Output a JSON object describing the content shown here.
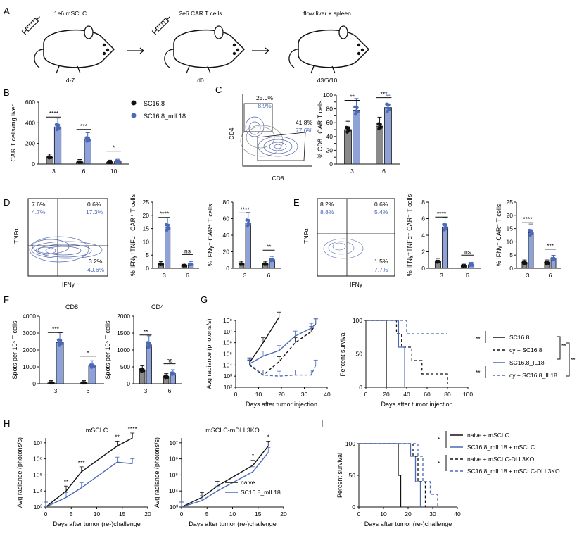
{
  "panels": {
    "A": "A",
    "B": "B",
    "C": "C",
    "D": "D",
    "E": "E",
    "F": "F",
    "G": "G",
    "H": "H",
    "I": "I"
  },
  "colors": {
    "black": "#111111",
    "blue": "#4a69b7",
    "lightblue": "#8ea2d8",
    "grey": "#8a8a8a"
  },
  "schematic": {
    "step1_label": "1e6 mSCLC",
    "step1_day": "d-7",
    "step2_label": "2e6 CAR T cells",
    "step2_day": "d0",
    "step3_label": "flow liver + spleen",
    "step3_day": "d3/6/10"
  },
  "legend_b": {
    "item1": "SC16.8",
    "item2": "SC16.8_mIL18"
  },
  "flow": {
    "c": {
      "tl_black": "25.0%",
      "tl_blue": "8.9%",
      "br_black": "41.8%",
      "br_blue": "77.6%",
      "xlabel": "CD8",
      "ylabel": "CD4"
    },
    "d": {
      "tl_black": "7.6%",
      "tl_blue": "4.7%",
      "tr_black": "0.6%",
      "tr_blue": "17.3%",
      "br_black": "3.2%",
      "br_blue": "40.6%",
      "xlabel": "IFNγ",
      "ylabel": "TNFα"
    },
    "e": {
      "tl_black": "8.2%",
      "tl_blue": "8.8%",
      "tr_black": "0.6%",
      "tr_blue": "5.4%",
      "br_black": "1.5%",
      "br_blue": "7.7%",
      "xlabel": "IFNγ",
      "ylabel": "TNFα"
    }
  },
  "chart_data": [
    {
      "id": "B",
      "type": "bar",
      "categories": [
        "3",
        "6",
        "10"
      ],
      "series": [
        {
          "name": "SC16.8",
          "values": [
            65,
            20,
            15
          ]
        },
        {
          "name": "SC16.8_mIL18",
          "values": [
            360,
            240,
            30
          ]
        }
      ],
      "ylabel": "CAR T cells/mg liver",
      "ylim": [
        0,
        600
      ],
      "yticks": [
        "0",
        "200",
        "400",
        "600"
      ],
      "sig": [
        "****",
        "***",
        "*"
      ]
    },
    {
      "id": "C",
      "type": "bar",
      "categories": [
        "3",
        "6"
      ],
      "series": [
        {
          "name": "SC16.8",
          "values": [
            50,
            55
          ]
        },
        {
          "name": "SC16.8_mIL18",
          "values": [
            78,
            82
          ]
        }
      ],
      "ylabel": "% CD8⁺ CAR T cells",
      "ylim": [
        0,
        100
      ],
      "yticks": [
        "0",
        "10",
        "20",
        "30",
        "40",
        "50",
        "60",
        "70",
        "80",
        "90",
        "100"
      ],
      "sig": [
        "**",
        "***"
      ]
    },
    {
      "id": "D1",
      "type": "bar",
      "categories": [
        "3",
        "6"
      ],
      "series": [
        {
          "name": "SC16.8",
          "values": [
            1.5,
            1
          ]
        },
        {
          "name": "SC16.8_mIL18",
          "values": [
            15.5,
            1.5
          ]
        }
      ],
      "ylabel": "% IFNγ⁺TNFα⁺ CAR⁺ T cells",
      "ylim": [
        0,
        25
      ],
      "yticks": [
        "0",
        "5",
        "10",
        "15",
        "20",
        "25"
      ],
      "sig": [
        "****",
        "ns"
      ]
    },
    {
      "id": "D2",
      "type": "bar",
      "categories": [
        "3",
        "6"
      ],
      "series": [
        {
          "name": "SC16.8",
          "values": [
            5,
            5
          ]
        },
        {
          "name": "SC16.8_mIL18",
          "values": [
            55,
            10
          ]
        }
      ],
      "ylabel": "% IFNγ⁺ CAR⁺ T cells",
      "ylim": [
        0,
        80
      ],
      "yticks": [
        "0",
        "20",
        "40",
        "60",
        "80"
      ],
      "sig": [
        "****",
        "**"
      ]
    },
    {
      "id": "E1",
      "type": "bar",
      "categories": [
        "3",
        "6"
      ],
      "series": [
        {
          "name": "SC16.8",
          "values": [
            0.8,
            0.3
          ]
        },
        {
          "name": "SC16.8_mIL18",
          "values": [
            5,
            0.4
          ]
        }
      ],
      "ylabel": "% IFNγ⁺TNFα⁺ CAR⁻ T cells",
      "ylim": [
        0,
        8
      ],
      "yticks": [
        "0",
        "2",
        "4",
        "6",
        "8"
      ],
      "sig": [
        "****",
        "ns"
      ]
    },
    {
      "id": "E2",
      "type": "bar",
      "categories": [
        "3",
        "6"
      ],
      "series": [
        {
          "name": "SC16.8",
          "values": [
            2,
            2
          ]
        },
        {
          "name": "SC16.8_mIL18",
          "values": [
            13.5,
            3.5
          ]
        }
      ],
      "ylabel": "% IFNγ⁺ CAR⁻ T cells",
      "ylim": [
        0,
        25
      ],
      "yticks": [
        "0",
        "5",
        "10",
        "15",
        "20",
        "25"
      ],
      "sig": [
        "****",
        "***"
      ]
    },
    {
      "id": "F1",
      "type": "bar",
      "title": "CD8",
      "categories": [
        "3",
        "6"
      ],
      "series": [
        {
          "name": "SC16.8",
          "values": [
            50,
            50
          ]
        },
        {
          "name": "SC16.8_mIL18",
          "values": [
            2450,
            1050
          ]
        }
      ],
      "ylabel": "Spots per 10⁵ T cells",
      "ylim": [
        0,
        4000
      ],
      "yticks": [
        "0",
        "1000",
        "2000",
        "3000",
        "4000"
      ],
      "sig": [
        "***",
        "*"
      ]
    },
    {
      "id": "F2",
      "type": "bar",
      "title": "CD4",
      "categories": [
        "3",
        "6"
      ],
      "series": [
        {
          "name": "SC16.8",
          "values": [
            400,
            200
          ]
        },
        {
          "name": "SC16.8_mIL18",
          "values": [
            1150,
            300
          ]
        }
      ],
      "ylabel": "Spots per 10⁵ T cells",
      "ylim": [
        0,
        2000
      ],
      "yticks": [
        "0",
        "500",
        "1000",
        "1500",
        "2000"
      ],
      "sig": [
        "**",
        "ns"
      ]
    },
    {
      "id": "G1",
      "type": "line",
      "xlabel": "Days after tumor injection",
      "ylabel": "Avg radiance (photons/s)",
      "xticks": [
        "0",
        "10",
        "20",
        "30",
        "40"
      ],
      "yticks": [
        "10²",
        "10³",
        "10⁴",
        "10⁵",
        "10⁶",
        "10⁷",
        "10⁸"
      ],
      "series": [
        {
          "name": "SC16.8",
          "style": "black-solid",
          "x": [
            6,
            12,
            19
          ],
          "y": [
            4.2,
            6.0,
            8.3
          ]
        },
        {
          "name": "cy + SC16.8",
          "style": "black-dash",
          "x": [
            6,
            12,
            19,
            26,
            33,
            35
          ],
          "y": [
            4.0,
            3.1,
            4.3,
            6.0,
            7.0,
            7.7
          ]
        },
        {
          "name": "SC16.8_IL18",
          "style": "blue-solid",
          "x": [
            6,
            12,
            19,
            26,
            33,
            35
          ],
          "y": [
            4.1,
            4.8,
            5.3,
            6.6,
            7.3,
            7.7
          ]
        },
        {
          "name": "cy + SC16.8_IL18",
          "style": "blue-dash",
          "x": [
            6,
            12,
            19,
            26,
            33,
            35
          ],
          "y": [
            4.1,
            3.1,
            3.0,
            3.1,
            3.1,
            4.0
          ]
        }
      ]
    },
    {
      "id": "G2",
      "type": "line",
      "xlabel": "Days after tumor injection",
      "ylabel": "Percent survival",
      "xticks": [
        "0",
        "20",
        "40",
        "60",
        "80",
        "100"
      ],
      "yticks": [
        "0",
        "50",
        "100"
      ],
      "legend": [
        "SC16.8",
        "cy + SC16.8",
        "SC16.8_IL18",
        "cy + SC16.8_IL18"
      ],
      "sig": [
        "**",
        "**",
        "**",
        "**"
      ]
    },
    {
      "id": "H1",
      "type": "line",
      "title": "mSCLC",
      "xlabel": "Days after tumor (re-)challenge",
      "ylabel": "Avg radiance (photons/s)",
      "xticks": [
        "0",
        "5",
        "10",
        "15",
        "20"
      ],
      "yticks": [
        "10³",
        "10⁴",
        "10⁵",
        "10⁶",
        "10⁷"
      ],
      "series": [
        {
          "name": "naive",
          "x": [
            0,
            4,
            7,
            14,
            17
          ],
          "y": [
            3.0,
            4.0,
            5.2,
            6.8,
            7.3
          ]
        },
        {
          "name": "SC16.8_mIL18",
          "x": [
            0,
            4,
            7,
            14,
            17
          ],
          "y": [
            3.0,
            3.6,
            4.2,
            5.8,
            5.7
          ]
        }
      ],
      "sig": [
        "**",
        "***",
        "**",
        "****"
      ]
    },
    {
      "id": "H2",
      "type": "line",
      "title": "mSCLC-mDLL3KO",
      "xlabel": "Days after tumor (re-)challenge",
      "ylabel": "Avg radiance (photons/s)",
      "xticks": [
        "0",
        "5",
        "10",
        "15",
        "20"
      ],
      "yticks": [
        "10³",
        "10⁴",
        "10⁵",
        "10⁶",
        "10⁷"
      ],
      "legend": [
        "naive",
        "SC16.8_mIL18"
      ],
      "series": [
        {
          "name": "naive",
          "x": [
            0,
            4,
            7,
            14,
            17
          ],
          "y": [
            3.0,
            3.6,
            4.3,
            5.6,
            6.8
          ]
        },
        {
          "name": "SC16.8_mIL18",
          "x": [
            0,
            4,
            7,
            14,
            17
          ],
          "y": [
            3.0,
            3.4,
            4.0,
            5.2,
            6.4
          ]
        }
      ],
      "sig": [
        "*",
        "*"
      ]
    },
    {
      "id": "I",
      "type": "line",
      "xlabel": "Days after tumor (re-)challenge",
      "ylabel": "Percent survival",
      "xticks": [
        "0",
        "10",
        "20",
        "30",
        "40"
      ],
      "yticks": [
        "0",
        "50",
        "100"
      ],
      "legend": [
        "naive + mSCLC",
        "SC16.8_mIL18 + mSCLC",
        "naive + mSCLC-DLL3KO",
        "SC16.8_mIL18 + mSCLC-DLL3KO"
      ],
      "sig": [
        "*",
        "*"
      ]
    }
  ]
}
